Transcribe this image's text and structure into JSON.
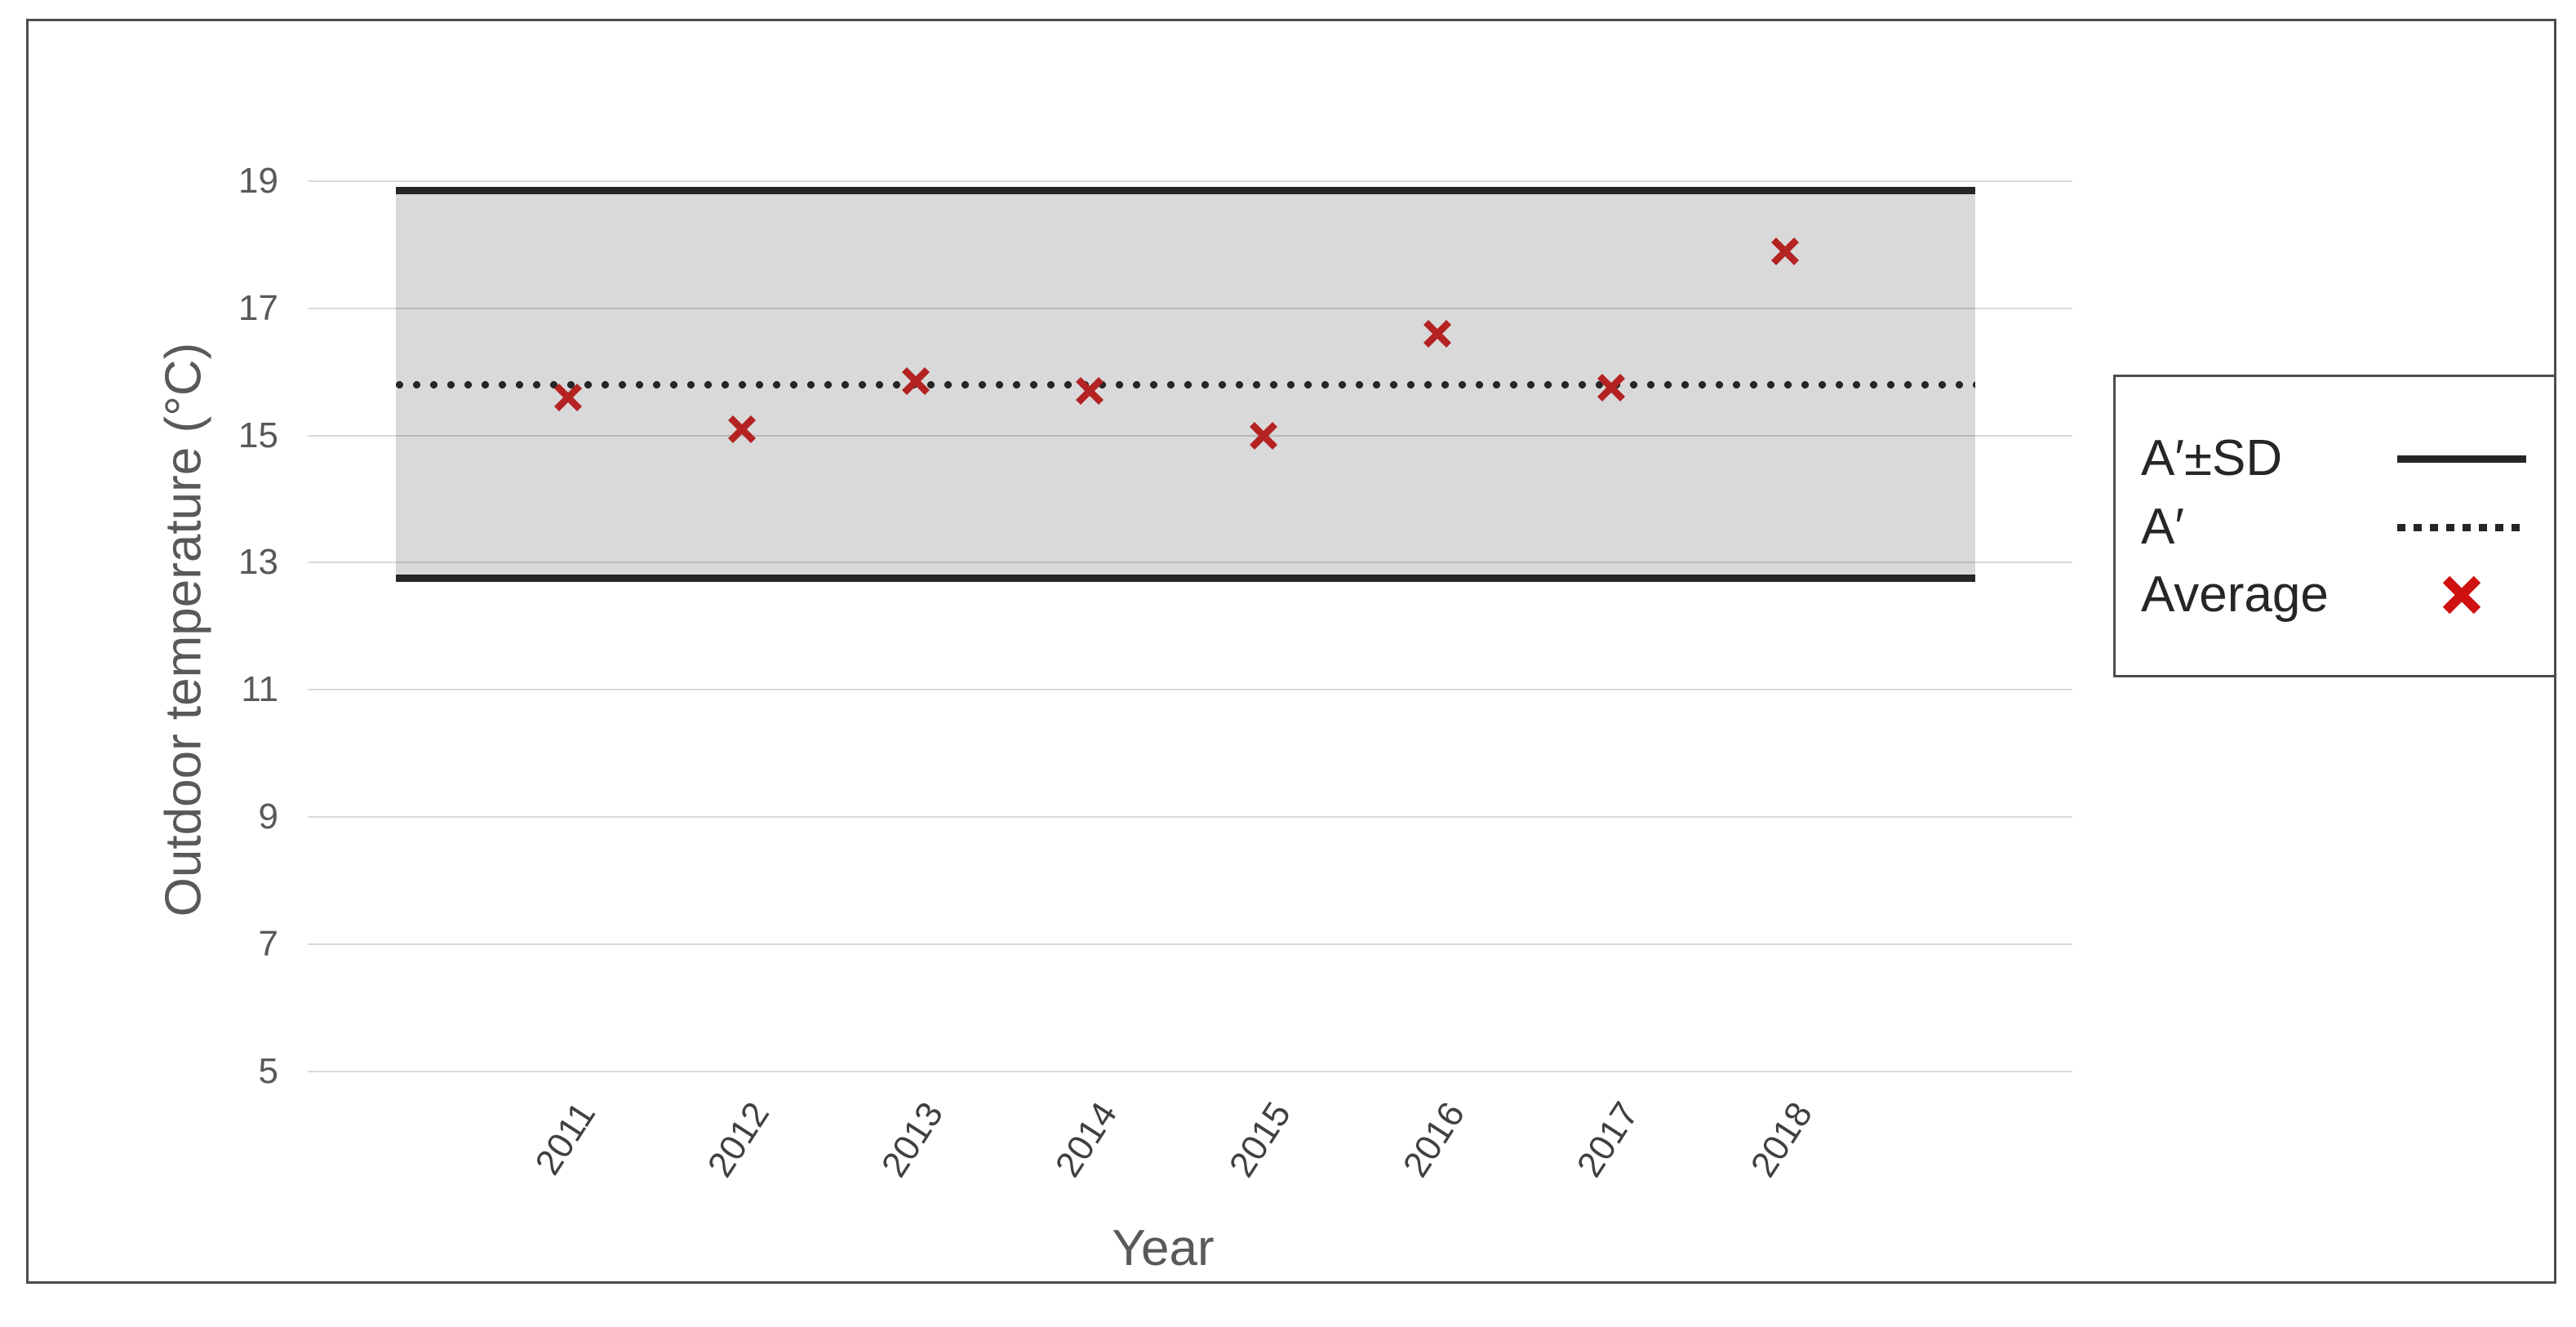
{
  "chart_data": {
    "type": "scatter",
    "title": "",
    "xlabel": "Year",
    "ylabel": "Outdoor temperature (°C)",
    "x": [
      2011,
      2012,
      2013,
      2014,
      2015,
      2016,
      2017,
      2018
    ],
    "series": [
      {
        "name": "Average",
        "marker": "x",
        "values": [
          15.6,
          15.1,
          15.85,
          15.7,
          15.0,
          16.6,
          15.75,
          17.9
        ]
      }
    ],
    "reference": {
      "band_label": "A′±SD",
      "mean_label": "A′",
      "mean": 15.8,
      "upper": 18.85,
      "lower": 12.75
    },
    "y_ticks": [
      19,
      17,
      15,
      13,
      11,
      9,
      7,
      5
    ],
    "ylim": [
      5,
      19.5
    ],
    "grid": true,
    "legend_position": "right",
    "legend": [
      {
        "label": "A′±SD",
        "swatch": "solid-line"
      },
      {
        "label": "A′",
        "swatch": "dotted-line"
      },
      {
        "label": "Average",
        "swatch": "x-marker"
      }
    ],
    "colors": {
      "marker": "#b42222",
      "legend_marker": "#cf1111",
      "band_fill": "#d9d9d9",
      "band_line": "#262626",
      "dotted_line": "#262626",
      "axis_text": "#595959",
      "year_text": "#404040",
      "legend_text": "#262626",
      "frame_border": "#4d4d4d"
    }
  }
}
